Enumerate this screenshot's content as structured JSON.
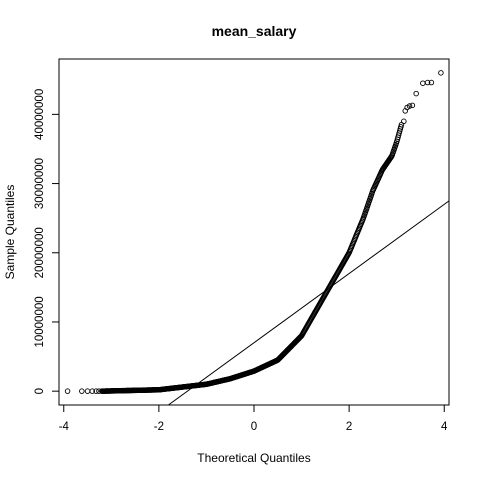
{
  "chart_data": {
    "type": "scatter",
    "title": "mean_salary",
    "xlabel": "Theoretical Quantiles",
    "ylabel": "Sample Quantiles",
    "xlim": [
      -4.1,
      4.1
    ],
    "ylim": [
      -2000000,
      48000000
    ],
    "x_ticks": [
      -4,
      -2,
      0,
      2,
      4
    ],
    "x_tick_labels": [
      "-4",
      "-2",
      "0",
      "2",
      "4"
    ],
    "y_ticks": [
      0,
      10000000,
      20000000,
      30000000,
      40000000
    ],
    "y_tick_labels": [
      "0",
      "10000000",
      "20000000",
      "30000000",
      "40000000"
    ],
    "grid": false,
    "marker": "open-circle",
    "point_color": "#000000",
    "reference_line": {
      "intercept": 7000000,
      "slope": 5000000
    },
    "outliers_low": [
      {
        "x": -3.92,
        "y": 0
      },
      {
        "x": -3.62,
        "y": 0
      },
      {
        "x": -3.5,
        "y": 0
      },
      {
        "x": -3.4,
        "y": 0
      },
      {
        "x": -3.32,
        "y": 0
      },
      {
        "x": -3.26,
        "y": 0
      }
    ],
    "curve_knots": [
      [
        -3.2,
        0
      ],
      [
        -2.0,
        200000
      ],
      [
        -1.0,
        1000000
      ],
      [
        -0.5,
        1800000
      ],
      [
        0.0,
        2900000
      ],
      [
        0.5,
        4500000
      ],
      [
        1.0,
        8000000
      ],
      [
        1.5,
        14000000
      ],
      [
        2.0,
        20000000
      ],
      [
        2.3,
        25000000
      ],
      [
        2.5,
        29000000
      ],
      [
        2.7,
        32000000
      ],
      [
        2.9,
        34000000
      ],
      [
        3.0,
        36000000
      ],
      [
        3.1,
        38500000
      ]
    ],
    "outliers_high": [
      {
        "x": 3.15,
        "y": 39000000
      },
      {
        "x": 3.18,
        "y": 40500000
      },
      {
        "x": 3.22,
        "y": 41000000
      },
      {
        "x": 3.27,
        "y": 41200000
      },
      {
        "x": 3.33,
        "y": 41300000
      },
      {
        "x": 3.41,
        "y": 43000000
      },
      {
        "x": 3.55,
        "y": 44500000
      },
      {
        "x": 3.65,
        "y": 44600000
      },
      {
        "x": 3.73,
        "y": 44600000
      },
      {
        "x": 3.93,
        "y": 46000000
      }
    ]
  }
}
